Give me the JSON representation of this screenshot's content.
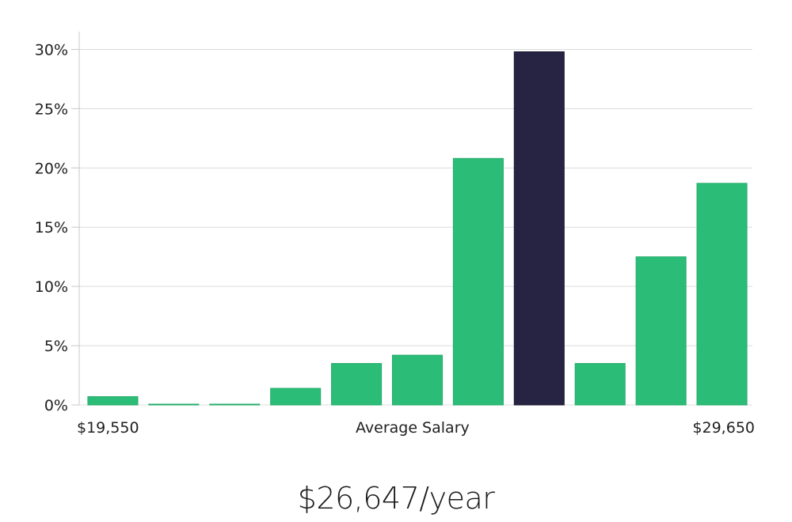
{
  "chart_data": {
    "type": "bar",
    "title": "",
    "xlabel": "Average Salary",
    "ylabel": "",
    "x_range_labels": {
      "min": "$19,550",
      "max": "$29,650"
    },
    "ylim": [
      0,
      31.5
    ],
    "yticks": [
      0,
      5,
      10,
      15,
      20,
      25,
      30
    ],
    "ytick_labels": [
      "0%",
      "5%",
      "10%",
      "15%",
      "20%",
      "25%",
      "30%"
    ],
    "grid": true,
    "values": [
      0.7,
      0.05,
      0.05,
      1.4,
      3.5,
      4.2,
      20.8,
      29.8,
      3.5,
      12.5,
      18.7
    ],
    "highlight_index": 7,
    "colors": {
      "bar": "#2bbd77",
      "highlight": "#262343",
      "grid": "#dcdcdc",
      "axis": "#c8c8c8"
    }
  },
  "summary": {
    "salary_text": "$26,647/year"
  }
}
